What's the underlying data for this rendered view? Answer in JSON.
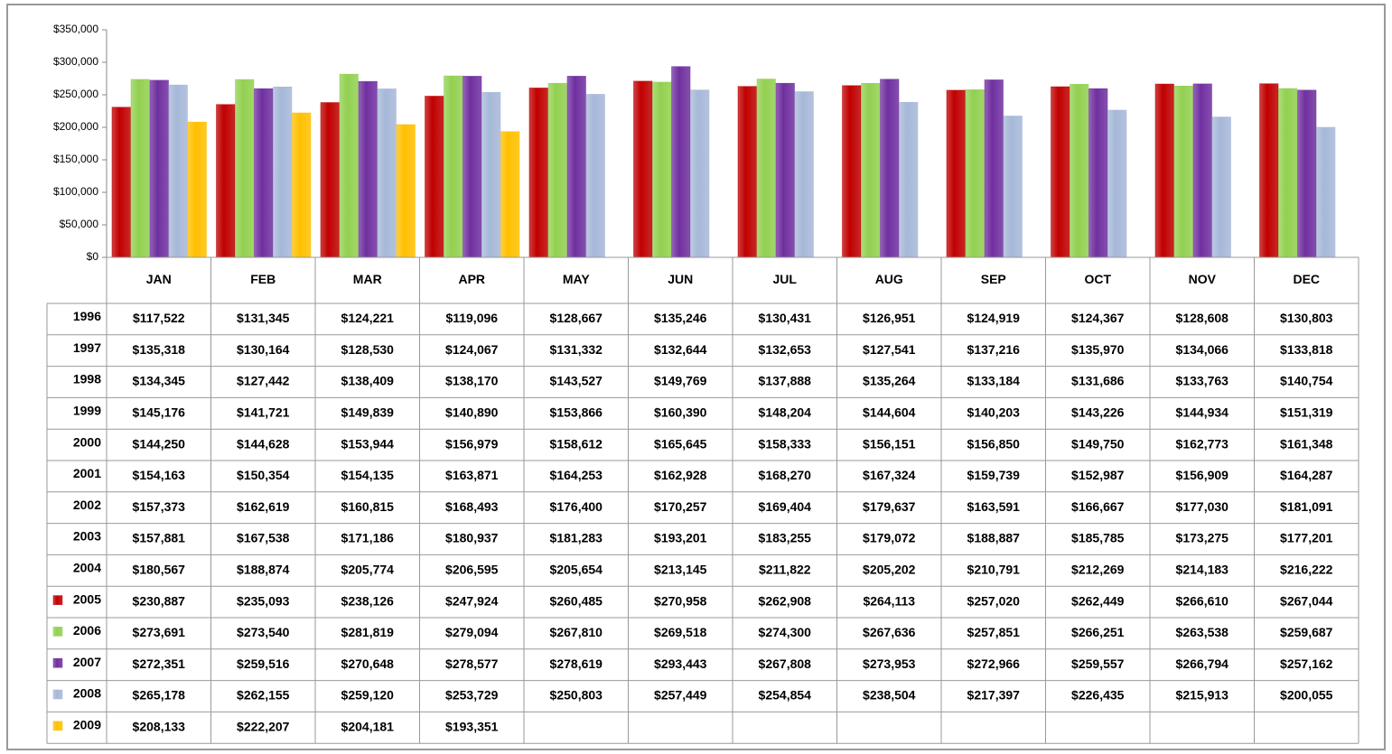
{
  "chart_data": {
    "type": "bar",
    "categories": [
      "JAN",
      "FEB",
      "MAR",
      "APR",
      "MAY",
      "JUN",
      "JUL",
      "AUG",
      "SEP",
      "OCT",
      "NOV",
      "DEC"
    ],
    "ylim": [
      0,
      350000
    ],
    "yticks": [
      {
        "value": 0,
        "label": "$0"
      },
      {
        "value": 50000,
        "label": "$50,000"
      },
      {
        "value": 100000,
        "label": "$100,000"
      },
      {
        "value": 150000,
        "label": "$150,000"
      },
      {
        "value": 200000,
        "label": "$200,000"
      },
      {
        "value": 250000,
        "label": "$250,000"
      },
      {
        "value": 300000,
        "label": "$300,000"
      },
      {
        "value": 350000,
        "label": "$350,000"
      }
    ],
    "grid": false,
    "series": [
      {
        "name": "1996",
        "values": [
          117522,
          131345,
          124221,
          119096,
          128667,
          135246,
          130431,
          126951,
          124919,
          124367,
          128608,
          130803
        ],
        "value_labels": [
          "$117,522",
          "$131,345",
          "$124,221",
          "$119,096",
          "$128,667",
          "$135,246",
          "$130,431",
          "$126,951",
          "$124,919",
          "$124,367",
          "$128,608",
          "$130,803"
        ]
      },
      {
        "name": "1997",
        "values": [
          135318,
          130164,
          128530,
          124067,
          131332,
          132644,
          132653,
          127541,
          137216,
          135970,
          134066,
          133818
        ],
        "value_labels": [
          "$135,318",
          "$130,164",
          "$128,530",
          "$124,067",
          "$131,332",
          "$132,644",
          "$132,653",
          "$127,541",
          "$137,216",
          "$135,970",
          "$134,066",
          "$133,818"
        ]
      },
      {
        "name": "1998",
        "values": [
          134345,
          127442,
          138409,
          138170,
          143527,
          149769,
          137888,
          135264,
          133184,
          131686,
          133763,
          140754
        ],
        "value_labels": [
          "$134,345",
          "$127,442",
          "$138,409",
          "$138,170",
          "$143,527",
          "$149,769",
          "$137,888",
          "$135,264",
          "$133,184",
          "$131,686",
          "$133,763",
          "$140,754"
        ]
      },
      {
        "name": "1999",
        "values": [
          145176,
          141721,
          149839,
          140890,
          153866,
          160390,
          148204,
          144604,
          140203,
          143226,
          144934,
          151319
        ],
        "value_labels": [
          "$145,176",
          "$141,721",
          "$149,839",
          "$140,890",
          "$153,866",
          "$160,390",
          "$148,204",
          "$144,604",
          "$140,203",
          "$143,226",
          "$144,934",
          "$151,319"
        ]
      },
      {
        "name": "2000",
        "values": [
          144250,
          144628,
          153944,
          156979,
          158612,
          165645,
          158333,
          156151,
          156850,
          149750,
          162773,
          161348
        ],
        "value_labels": [
          "$144,250",
          "$144,628",
          "$153,944",
          "$156,979",
          "$158,612",
          "$165,645",
          "$158,333",
          "$156,151",
          "$156,850",
          "$149,750",
          "$162,773",
          "$161,348"
        ]
      },
      {
        "name": "2001",
        "values": [
          154163,
          150354,
          154135,
          163871,
          164253,
          162928,
          168270,
          167324,
          159739,
          152987,
          156909,
          164287
        ],
        "value_labels": [
          "$154,163",
          "$150,354",
          "$154,135",
          "$163,871",
          "$164,253",
          "$162,928",
          "$168,270",
          "$167,324",
          "$159,739",
          "$152,987",
          "$156,909",
          "$164,287"
        ]
      },
      {
        "name": "2002",
        "values": [
          157373,
          162619,
          160815,
          168493,
          176400,
          170257,
          169404,
          179637,
          163591,
          166667,
          177030,
          181091
        ],
        "value_labels": [
          "$157,373",
          "$162,619",
          "$160,815",
          "$168,493",
          "$176,400",
          "$170,257",
          "$169,404",
          "$179,637",
          "$163,591",
          "$166,667",
          "$177,030",
          "$181,091"
        ]
      },
      {
        "name": "2003",
        "values": [
          157881,
          167538,
          171186,
          180937,
          181283,
          193201,
          183255,
          179072,
          188887,
          185785,
          173275,
          177201
        ],
        "value_labels": [
          "$157,881",
          "$167,538",
          "$171,186",
          "$180,937",
          "$181,283",
          "$193,201",
          "$183,255",
          "$179,072",
          "$188,887",
          "$185,785",
          "$173,275",
          "$177,201"
        ]
      },
      {
        "name": "2004",
        "values": [
          180567,
          188874,
          205774,
          206595,
          205654,
          213145,
          211822,
          205202,
          210791,
          212269,
          214183,
          216222
        ],
        "value_labels": [
          "$180,567",
          "$188,874",
          "$205,774",
          "$206,595",
          "$205,654",
          "$213,145",
          "$211,822",
          "$205,202",
          "$210,791",
          "$212,269",
          "$214,183",
          "$216,222"
        ]
      },
      {
        "name": "2005",
        "color": "#c00000",
        "values": [
          230887,
          235093,
          238126,
          247924,
          260485,
          270958,
          262908,
          264113,
          257020,
          262449,
          266610,
          267044
        ],
        "value_labels": [
          "$230,887",
          "$235,093",
          "$238,126",
          "$247,924",
          "$260,485",
          "$270,958",
          "$262,908",
          "$264,113",
          "$257,020",
          "$262,449",
          "$266,610",
          "$267,044"
        ]
      },
      {
        "name": "2006",
        "color": "#92d050",
        "values": [
          273691,
          273540,
          281819,
          279094,
          267810,
          269518,
          274300,
          267636,
          257851,
          266251,
          263538,
          259687
        ],
        "value_labels": [
          "$273,691",
          "$273,540",
          "$281,819",
          "$279,094",
          "$267,810",
          "$269,518",
          "$274,300",
          "$267,636",
          "$257,851",
          "$266,251",
          "$263,538",
          "$259,687"
        ]
      },
      {
        "name": "2007",
        "color": "#7030a0",
        "values": [
          272351,
          259516,
          270648,
          278577,
          278619,
          293443,
          267808,
          273953,
          272966,
          259557,
          266794,
          257162
        ],
        "value_labels": [
          "$272,351",
          "$259,516",
          "$270,648",
          "$278,577",
          "$278,619",
          "$293,443",
          "$267,808",
          "$273,953",
          "$272,966",
          "$259,557",
          "$266,794",
          "$257,162"
        ]
      },
      {
        "name": "2008",
        "color": "#a6b8d8",
        "values": [
          265178,
          262155,
          259120,
          253729,
          250803,
          257449,
          254854,
          238504,
          217397,
          226435,
          215913,
          200055
        ],
        "value_labels": [
          "$265,178",
          "$262,155",
          "$259,120",
          "$253,729",
          "$250,803",
          "$257,449",
          "$254,854",
          "$238,504",
          "$217,397",
          "$226,435",
          "$215,913",
          "$200,055"
        ]
      },
      {
        "name": "2009",
        "color": "#ffc000",
        "values": [
          208133,
          222207,
          204181,
          193351,
          null,
          null,
          null,
          null,
          null,
          null,
          null,
          null
        ],
        "value_labels": [
          "$208,133",
          "$222,207",
          "$204,181",
          "$193,351",
          null,
          null,
          null,
          null,
          null,
          null,
          null,
          null
        ]
      }
    ]
  }
}
